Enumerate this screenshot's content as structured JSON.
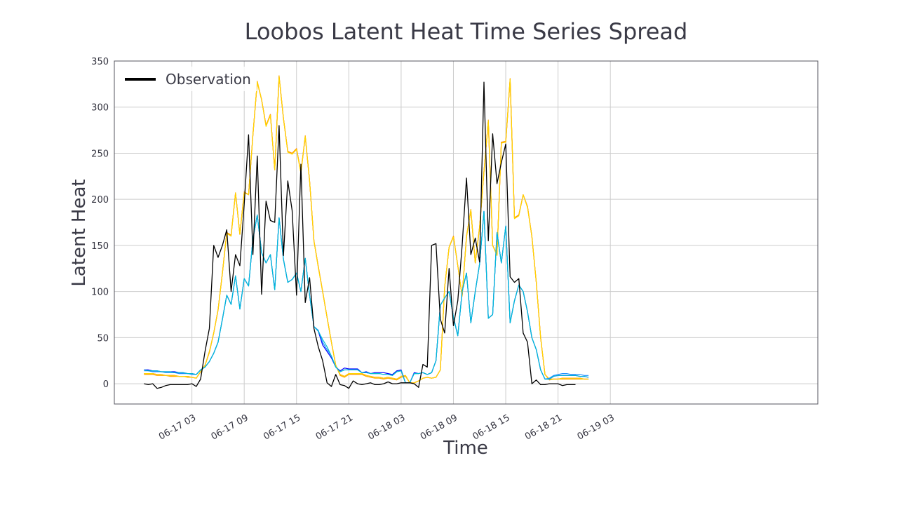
{
  "chart_data": {
    "type": "line",
    "title": "Loobos Latent Heat Time Series Spread",
    "xlabel": "Time",
    "ylabel": "Latent Heat",
    "ylim": [
      -22,
      350
    ],
    "xlim_hours": [
      -5.9,
      74.8
    ],
    "grid": true,
    "legend": {
      "placement": "top-left",
      "entries": [
        "Observation"
      ]
    },
    "yticks": [
      0,
      50,
      100,
      150,
      200,
      250,
      300,
      350
    ],
    "xticks": [
      {
        "hour": 3,
        "label": "06-17 03"
      },
      {
        "hour": 9,
        "label": "06-17 09"
      },
      {
        "hour": 15,
        "label": "06-17 15"
      },
      {
        "hour": 21,
        "label": "06-17 21"
      },
      {
        "hour": 27,
        "label": "06-18 03"
      },
      {
        "hour": 33,
        "label": "06-18 09"
      },
      {
        "hour": 39,
        "label": "06-18 15"
      },
      {
        "hour": 45,
        "label": "06-18 21"
      },
      {
        "hour": 51,
        "label": "06-19 03"
      }
    ],
    "x_start_hour": -2.5,
    "x_step_hours": 0.5,
    "series": [
      {
        "name": "",
        "color": "#ff0000",
        "values": [
          11,
          11,
          11,
          10,
          10,
          9,
          9,
          9,
          8,
          8,
          8,
          7,
          6,
          13,
          20,
          34,
          55,
          80,
          120,
          164,
          161,
          207,
          162,
          208,
          205,
          270,
          327,
          308,
          280,
          292,
          232,
          333,
          288,
          252,
          250,
          255,
          229,
          268,
          220,
          155,
          127,
          100,
          72,
          45,
          20,
          10,
          8,
          11,
          11,
          11,
          11,
          9,
          8,
          7,
          7,
          6,
          7,
          6,
          5,
          8,
          9,
          1,
          1,
          3,
          6,
          7,
          6,
          7,
          15,
          105,
          148,
          160,
          128,
          95,
          160,
          188,
          131,
          170,
          230,
          285,
          150,
          140,
          262,
          262,
          330,
          180,
          183,
          205,
          192,
          160,
          110,
          50,
          10,
          5,
          5,
          5,
          6,
          6,
          6,
          6,
          6,
          5,
          5
        ]
      },
      {
        "name": "",
        "color": "#ffa500",
        "values": [
          10,
          10,
          10,
          9,
          9,
          9,
          8,
          8,
          8,
          8,
          7,
          7,
          6,
          13,
          20,
          35,
          55,
          80,
          120,
          164,
          161,
          207,
          162,
          208,
          205,
          270,
          328,
          308,
          280,
          292,
          232,
          334,
          288,
          252,
          250,
          255,
          229,
          269,
          220,
          155,
          127,
          100,
          72,
          45,
          20,
          9,
          7,
          10,
          10,
          10,
          10,
          8,
          7,
          6,
          6,
          5,
          6,
          5,
          4,
          7,
          8,
          1,
          1,
          3,
          6,
          7,
          6,
          7,
          15,
          105,
          148,
          160,
          128,
          95,
          160,
          189,
          131,
          170,
          230,
          286,
          150,
          140,
          262,
          263,
          331,
          180,
          183,
          205,
          192,
          160,
          110,
          50,
          10,
          4,
          5,
          5,
          5,
          5,
          5,
          5,
          5,
          5,
          5
        ]
      },
      {
        "name": "",
        "color": "#ffd700",
        "values": [
          11,
          11,
          11,
          10,
          10,
          9,
          9,
          9,
          8,
          8,
          8,
          7,
          6,
          13,
          20,
          34,
          55,
          80,
          120,
          163,
          160,
          207,
          162,
          207,
          205,
          270,
          327,
          308,
          279,
          291,
          232,
          333,
          288,
          251,
          249,
          254,
          228,
          268,
          220,
          155,
          126,
          100,
          72,
          45,
          20,
          10,
          8,
          11,
          11,
          11,
          11,
          9,
          8,
          7,
          7,
          6,
          7,
          6,
          5,
          8,
          9,
          1,
          1,
          3,
          6,
          7,
          6,
          7,
          15,
          105,
          148,
          159,
          128,
          95,
          159,
          188,
          131,
          169,
          230,
          285,
          150,
          139,
          261,
          262,
          330,
          179,
          182,
          205,
          191,
          160,
          110,
          50,
          10,
          5,
          5,
          5,
          6,
          6,
          6,
          6,
          6,
          5,
          5
        ]
      },
      {
        "name": "",
        "color": "#0000ff",
        "values": [
          15,
          15,
          14,
          14,
          13,
          13,
          13,
          13,
          12,
          12,
          11,
          11,
          10,
          15,
          18,
          24,
          33,
          45,
          70,
          96,
          86,
          117,
          81,
          114,
          106,
          157,
          183,
          142,
          131,
          140,
          102,
          180,
          135,
          110,
          113,
          120,
          100,
          136,
          96,
          62,
          57,
          42,
          35,
          28,
          18,
          14,
          17,
          16,
          16,
          16,
          12,
          13,
          11,
          12,
          12,
          12,
          11,
          10,
          14,
          15,
          1,
          1,
          12,
          11,
          12,
          10,
          12,
          25,
          85,
          93,
          100,
          72,
          52,
          100,
          120,
          66,
          100,
          130,
          187,
          71,
          75,
          164,
          131,
          171,
          66,
          90,
          107,
          100,
          78,
          50,
          37,
          15,
          5,
          5,
          8,
          9,
          9,
          9,
          9,
          9,
          8,
          8,
          7
        ]
      },
      {
        "name": "",
        "color": "#1e90ff",
        "values": [
          14,
          14,
          13,
          13,
          13,
          12,
          12,
          12,
          11,
          11,
          11,
          10,
          10,
          15,
          18,
          24,
          33,
          45,
          70,
          96,
          86,
          117,
          81,
          114,
          106,
          157,
          183,
          142,
          131,
          140,
          102,
          180,
          135,
          110,
          113,
          120,
          100,
          136,
          96,
          62,
          58,
          45,
          37,
          30,
          18,
          13,
          15,
          15,
          15,
          15,
          12,
          12,
          11,
          11,
          11,
          10,
          10,
          9,
          13,
          14,
          1,
          1,
          11,
          11,
          12,
          10,
          12,
          25,
          85,
          93,
          100,
          72,
          52,
          100,
          120,
          66,
          100,
          130,
          187,
          71,
          75,
          164,
          131,
          171,
          66,
          90,
          107,
          100,
          78,
          50,
          37,
          15,
          5,
          6,
          9,
          10,
          11,
          11,
          10,
          10,
          10,
          9,
          9
        ]
      },
      {
        "name": "",
        "color": "#00bcd4",
        "values": [
          15,
          14,
          14,
          14,
          13,
          13,
          13,
          12,
          12,
          12,
          11,
          11,
          10,
          15,
          18,
          24,
          33,
          45,
          70,
          96,
          86,
          117,
          81,
          114,
          106,
          157,
          183,
          142,
          131,
          140,
          102,
          180,
          135,
          110,
          113,
          120,
          100,
          136,
          96,
          62,
          57,
          48,
          40,
          30,
          18,
          13,
          15,
          15,
          15,
          15,
          12,
          12,
          11,
          11,
          11,
          10,
          10,
          9,
          13,
          14,
          1,
          1,
          11,
          11,
          12,
          10,
          12,
          25,
          85,
          93,
          100,
          72,
          52,
          100,
          120,
          66,
          100,
          130,
          187,
          71,
          75,
          164,
          131,
          171,
          66,
          90,
          107,
          100,
          78,
          50,
          37,
          15,
          5,
          5,
          8,
          9,
          9,
          9,
          9,
          9,
          8,
          8,
          7
        ]
      },
      {
        "name": "Observation",
        "color": "#000000",
        "values": [
          0,
          -1,
          0,
          -5,
          -4,
          -2,
          -1,
          -1,
          -1,
          -1,
          -1,
          0,
          -3,
          5,
          35,
          60,
          150,
          137,
          150,
          167,
          100,
          140,
          128,
          195,
          270,
          140,
          247,
          97,
          198,
          177,
          175,
          280,
          139,
          220,
          188,
          96,
          238,
          88,
          115,
          60,
          40,
          25,
          1,
          -3,
          10,
          -1,
          -2,
          -5,
          3,
          0,
          -1,
          0,
          1,
          -1,
          -1,
          0,
          2,
          0,
          0,
          1,
          1,
          1,
          0,
          -4,
          21,
          18,
          150,
          152,
          70,
          55,
          125,
          63,
          90,
          150,
          223,
          140,
          158,
          132,
          327,
          155,
          271,
          217,
          240,
          260,
          116,
          110,
          114,
          55,
          45,
          0,
          4,
          -1,
          -1,
          0,
          0,
          0,
          -2,
          -1,
          -1,
          -1
        ]
      }
    ]
  }
}
